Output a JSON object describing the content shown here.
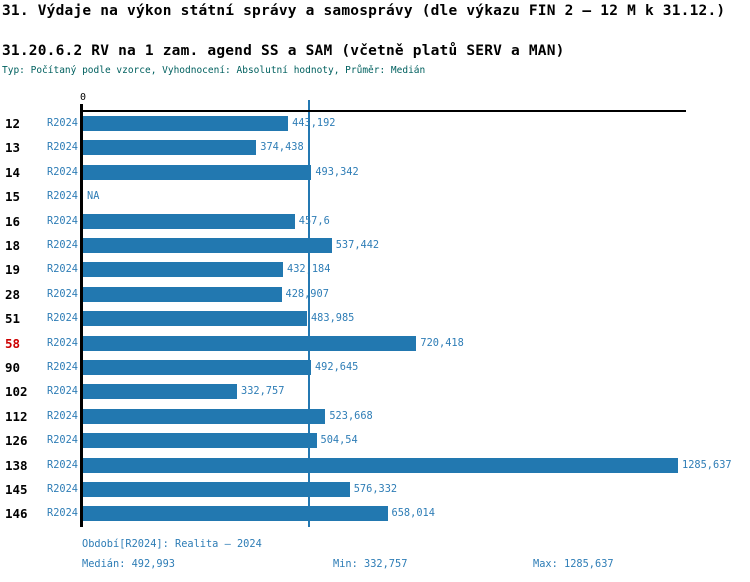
{
  "title": "31. Výdaje na výkon státní správy a samosprávy (dle výkazu FIN 2 – 12 M k 31.12.)",
  "subtitle": "31.20.6.2 RV na 1 zam. agend SS a SAM (včetně platů SERV a MAN)",
  "meta_line": "Typ: Počítaný podle vzorce, Vyhodnocení: Absolutní hodnoty, Průměr: Medián",
  "axis": {
    "zero_label": "0"
  },
  "colors": {
    "bar": "#2278b0",
    "blue_text": "#2e7db6",
    "highlight_row": "#cc0000",
    "meta_text": "#00605f",
    "axis": "#000000",
    "median_line": "#2478b2"
  },
  "chart_data": {
    "type": "bar",
    "orientation": "horizontal",
    "period_label": "R2024",
    "categories": [
      "12",
      "13",
      "14",
      "15",
      "16",
      "18",
      "19",
      "28",
      "51",
      "58",
      "90",
      "102",
      "112",
      "126",
      "138",
      "145",
      "146"
    ],
    "values": [
      443.192,
      374.438,
      493.342,
      null,
      457.6,
      537.442,
      432.184,
      428.907,
      483.985,
      720.418,
      492.645,
      332.757,
      523.668,
      504.54,
      1285.637,
      576.332,
      658.014
    ],
    "value_labels": [
      "443,192",
      "374,438",
      "493,342",
      "NA",
      "457,6",
      "537,442",
      "432,184",
      "428,907",
      "483,985",
      "720,418",
      "492,645",
      "332,757",
      "523,668",
      "504,54",
      "1285,637",
      "576,332",
      "658,014"
    ],
    "highlighted_category": "58",
    "median": 492.993,
    "xlim": [
      0,
      1285.637
    ],
    "x_tick_labels": [
      "0"
    ],
    "grid": false,
    "legend": "none"
  },
  "footer": {
    "period": "Období[R2024]: Realita – 2024",
    "median": "Medián: 492,993",
    "min": "Min: 332,757",
    "max": "Max: 1285,637"
  }
}
